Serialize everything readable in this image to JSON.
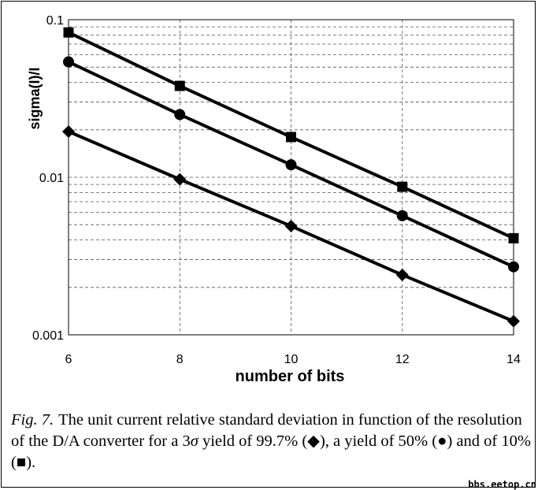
{
  "chart_data": {
    "type": "line",
    "title": "",
    "xlabel": "number of bits",
    "ylabel": "sigma(I)/I",
    "x": [
      6,
      8,
      10,
      12,
      14
    ],
    "x_ticks": [
      "6",
      "8",
      "10",
      "12",
      "14"
    ],
    "xlim": [
      6,
      14
    ],
    "ylim": [
      0.001,
      0.1
    ],
    "yscale": "log",
    "y_ticks": [
      "0.1",
      "0.01",
      "0.001"
    ],
    "grid": "dashed minor gridlines",
    "series": [
      {
        "marker": "square",
        "values": [
          0.083,
          0.038,
          0.018,
          0.0087,
          0.0041
        ]
      },
      {
        "marker": "circle",
        "values": [
          0.054,
          0.025,
          0.012,
          0.0057,
          0.0027
        ]
      },
      {
        "marker": "diamond",
        "values": [
          0.0195,
          0.0097,
          0.0049,
          0.0024,
          0.00122
        ]
      }
    ]
  },
  "caption": {
    "fig_label": "Fig. 7.",
    "text_1": "The unit current relative standard deviation in function of the resolution of the D/A converter for a 3",
    "sigma": "σ",
    "text_2": " yield of 99.7% (◆), a yield of 50% (●) and of 10% (■)."
  },
  "watermark": "bbs.eetop.cn"
}
